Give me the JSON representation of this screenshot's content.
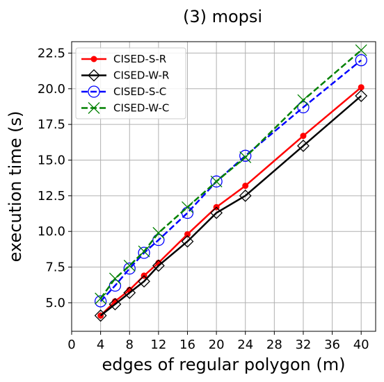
{
  "chart_data": {
    "type": "line",
    "title": "(3) mopsi",
    "xlabel": "edges of regular polygon (m)",
    "ylabel": "execution time (s)",
    "xlim": [
      0,
      42
    ],
    "ylim": [
      3.0,
      23.3
    ],
    "xticks": [
      0,
      4,
      8,
      12,
      16,
      20,
      24,
      28,
      32,
      36,
      40
    ],
    "xtick_labels": [
      "0",
      "4",
      "8",
      "12",
      "16",
      "20",
      "24",
      "28",
      "32",
      "36",
      "40"
    ],
    "yticks": [
      5.0,
      7.5,
      10.0,
      12.5,
      15.0,
      17.5,
      20.0,
      22.5
    ],
    "ytick_labels": [
      "5.0",
      "7.5",
      "10.0",
      "12.5",
      "15.0",
      "17.5",
      "20.0",
      "22.5"
    ],
    "grid": true,
    "legend_position": "top-left",
    "x": [
      4,
      6,
      8,
      10,
      12,
      16,
      20,
      24,
      32,
      40
    ],
    "series": [
      {
        "name": "CISED-S-R",
        "color": "#ff0000",
        "line_style": "solid",
        "marker": "dot",
        "values": [
          4.1,
          5.1,
          5.9,
          6.9,
          7.8,
          9.8,
          11.7,
          13.2,
          16.7,
          20.1
        ]
      },
      {
        "name": "CISED-W-R",
        "color": "#000000",
        "line_style": "solid",
        "marker": "diamond",
        "values": [
          4.1,
          4.9,
          5.7,
          6.5,
          7.6,
          9.3,
          11.3,
          12.5,
          16.0,
          19.5
        ]
      },
      {
        "name": "CISED-S-C",
        "color": "#0000ff",
        "line_style": "dashed",
        "marker": "circle",
        "values": [
          5.1,
          6.2,
          7.4,
          8.5,
          9.4,
          11.3,
          13.5,
          15.3,
          18.7,
          22.0
        ]
      },
      {
        "name": "CISED-W-C",
        "color": "#008000",
        "line_style": "dashed",
        "marker": "x",
        "values": [
          5.3,
          6.7,
          7.6,
          8.6,
          9.9,
          11.7,
          13.5,
          15.2,
          19.2,
          22.7
        ]
      }
    ]
  }
}
